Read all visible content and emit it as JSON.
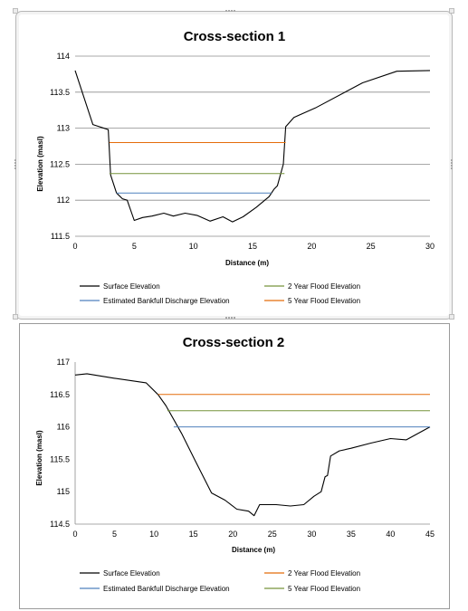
{
  "chart_data": [
    {
      "type": "line",
      "title": "Cross-section 1",
      "xlabel": "Distance  (m)",
      "ylabel": "Elevation  (masl)",
      "xlim": [
        0,
        30
      ],
      "ylim": [
        111.5,
        114
      ],
      "xticks": [
        "0",
        "5",
        "10",
        "15",
        "20",
        "25",
        "30"
      ],
      "yticks": [
        "111.5",
        "112",
        "112.5",
        "113",
        "113.5",
        "114"
      ],
      "grid": "horizontal",
      "legend_position": "bottom",
      "series": [
        {
          "name": "Surface Elevation",
          "color": "#000000",
          "x": [
            0,
            1.5,
            2.8,
            3.0,
            3.5,
            4.0,
            4.4,
            5.0,
            5.7,
            6.5,
            7.5,
            8.3,
            9.3,
            10.3,
            11.4,
            12.5,
            13.3,
            14.2,
            15.3,
            16.4,
            16.8,
            17.1,
            17.6,
            17.8,
            18.5,
            20.3,
            24.3,
            27.2,
            30.0
          ],
          "y": [
            113.8,
            113.05,
            112.98,
            112.35,
            112.1,
            112.02,
            112.0,
            111.72,
            111.76,
            111.78,
            111.82,
            111.78,
            111.82,
            111.79,
            111.71,
            111.77,
            111.7,
            111.77,
            111.9,
            112.05,
            112.15,
            112.2,
            112.5,
            113.02,
            113.15,
            113.28,
            113.63,
            113.79,
            113.8
          ]
        },
        {
          "name": "2 Year Flood Elevation",
          "color": "#77933C",
          "level": 112.37,
          "x_range": [
            2.9,
            17.7
          ]
        },
        {
          "name": "Estimated Bankfull Discharge Elevation",
          "color": "#4F81BD",
          "level": 112.1,
          "x_range": [
            3.5,
            16.6
          ]
        },
        {
          "name": "5 Year Flood Elevation",
          "color": "#E46C0A",
          "level": 112.8,
          "x_range": [
            2.9,
            17.8
          ]
        }
      ]
    },
    {
      "type": "line",
      "title": "Cross-section 2",
      "xlabel": "Distance  (m)",
      "ylabel": "Elevation  (masl)",
      "xlim": [
        0,
        45
      ],
      "ylim": [
        114.5,
        117
      ],
      "xticks": [
        "0",
        "5",
        "10",
        "15",
        "20",
        "25",
        "30",
        "35",
        "40",
        "45"
      ],
      "yticks": [
        "114.5",
        "115",
        "115.5",
        "116",
        "116.5",
        "117"
      ],
      "grid": "none",
      "legend_position": "bottom",
      "series": [
        {
          "name": "Surface Elevation",
          "color": "#000000",
          "x": [
            0,
            1.5,
            5.0,
            9.0,
            10.5,
            11.5,
            13.5,
            15.3,
            17.3,
            19.0,
            20.5,
            22.0,
            22.7,
            23.4,
            25.5,
            27.3,
            29.0,
            30.3,
            31.2,
            31.7,
            32.0,
            32.4,
            33.5,
            35.0,
            37.5,
            40.0,
            42.0,
            45.0
          ],
          "y": [
            116.8,
            116.82,
            116.75,
            116.68,
            116.5,
            116.33,
            115.9,
            115.46,
            114.98,
            114.87,
            114.73,
            114.7,
            114.63,
            114.8,
            114.8,
            114.78,
            114.8,
            114.93,
            115.0,
            115.23,
            115.25,
            115.55,
            115.63,
            115.67,
            115.75,
            115.82,
            115.8,
            116.0
          ]
        },
        {
          "name": "2 Year Flood Elevation",
          "color": "#E46C0A",
          "level": 116.5,
          "x_range": [
            10.5,
            45
          ]
        },
        {
          "name": "Estimated Bankfull Discharge Elevation",
          "color": "#4F81BD",
          "level": 116.0,
          "x_range": [
            12.5,
            45
          ]
        },
        {
          "name": "5 Year Flood Elevation",
          "color": "#77933C",
          "level": 116.25,
          "x_range": [
            11.7,
            45
          ]
        }
      ]
    }
  ]
}
